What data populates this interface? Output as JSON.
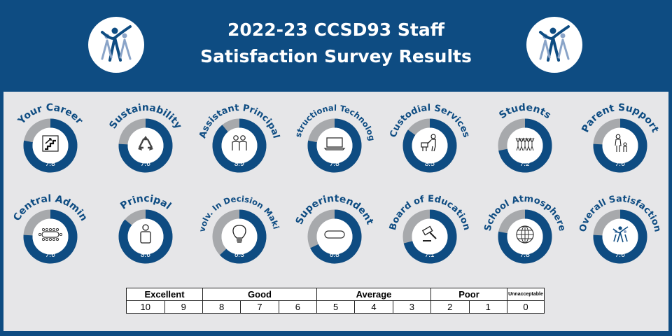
{
  "title_lines": [
    "2022-23 CCSD93 Staff",
    "Satisfaction Survey Results"
  ],
  "colors": {
    "header": "#0e4c82",
    "gauge_fill": "#0e4c82",
    "gauge_rest": "#a7a9ac",
    "panel": "#e6e6e8"
  },
  "chart_data": {
    "type": "donut",
    "scale_max": 10,
    "categories": [
      "Your Career",
      "Sustainability",
      "Assistant Principal",
      "Instructional Technology",
      "Custodial Services",
      "Students",
      "Parent Support",
      "Central Admin",
      "Principal",
      "Involv. In Decision Making",
      "Superintendent",
      "Board of Education",
      "School Atmosphere",
      "Overall Satisfaction"
    ],
    "values": [
      7.8,
      7.6,
      8.9,
      7.8,
      8.5,
      7.2,
      7.6,
      7.6,
      8.6,
      6.3,
      6.8,
      7.1,
      7.8,
      7.6
    ],
    "icons": [
      "stairs-icon",
      "recycle-icon",
      "two-people-icon",
      "laptop-icon",
      "janitor-icon",
      "students-icon",
      "parent-child-icon",
      "meeting-table-icon",
      "person-icon",
      "lightbulb-icon",
      "capsule-icon",
      "gavel-icon",
      "globe-icon",
      "ccsd93-logo-icon"
    ]
  },
  "legend": {
    "groups": [
      "Excellent",
      "Good",
      "Average",
      "Poor",
      "Unnacceptable"
    ],
    "values": [
      "10",
      "9",
      "8",
      "7",
      "6",
      "5",
      "4",
      "3",
      "2",
      "1",
      "0"
    ]
  }
}
